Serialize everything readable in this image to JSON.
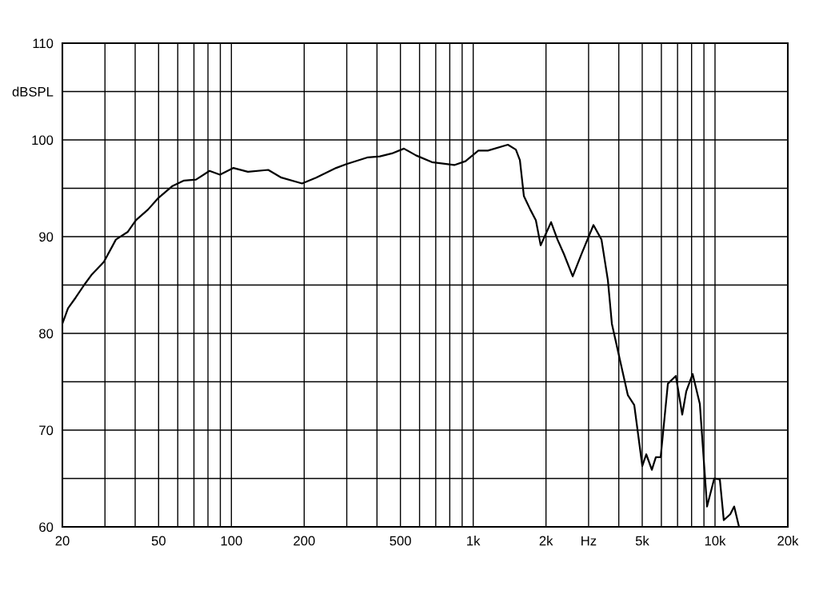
{
  "chart_data": {
    "type": "line",
    "log": "x",
    "grid": true,
    "marker": "none",
    "line_style": "solid",
    "xlim": [
      20,
      20000
    ],
    "ylim": [
      60,
      110
    ],
    "xticks": [
      20,
      {
        "value": 30,
        "label": null
      },
      {
        "value": 40,
        "label": null
      },
      50,
      {
        "value": 60,
        "label": null
      },
      {
        "value": 70,
        "label": null
      },
      {
        "value": 80,
        "label": null
      },
      {
        "value": 90,
        "label": null
      },
      100,
      200,
      {
        "value": 300,
        "label": null
      },
      {
        "value": 400,
        "label": null
      },
      500,
      {
        "value": 600,
        "label": null
      },
      {
        "value": 700,
        "label": null
      },
      {
        "value": 800,
        "label": null
      },
      {
        "value": 900,
        "label": null
      },
      {
        "value": 1000,
        "label": "1k"
      },
      {
        "value": 2000,
        "label": "2k"
      },
      {
        "value": 3000,
        "label": "Hz"
      },
      {
        "value": 4000,
        "label": null
      },
      {
        "value": 5000,
        "label": "5k"
      },
      {
        "value": 6000,
        "label": null
      },
      {
        "value": 7000,
        "label": null
      },
      {
        "value": 8000,
        "label": null
      },
      {
        "value": 9000,
        "label": null
      },
      {
        "value": 10000,
        "label": "10k"
      },
      {
        "value": 20000,
        "label": "20k"
      }
    ],
    "yticks": [
      60,
      {
        "value": 65,
        "label": null
      },
      70,
      {
        "value": 75,
        "label": null
      },
      80,
      {
        "value": 85,
        "label": null
      },
      90,
      {
        "value": 95,
        "label": null
      },
      100,
      {
        "value": 105,
        "label": "dBSPL"
      },
      110
    ],
    "series": [
      {
        "color": "#000000",
        "x": [
          20,
          21.1,
          22.7,
          24.6,
          26.5,
          29.7,
          33.3,
          37.3,
          40.3,
          45.2,
          49.9,
          56.8,
          63.7,
          71.4,
          81.2,
          89.7,
          102,
          117,
          142,
          161,
          196,
          224,
          271,
          299,
          367,
          411,
          461,
          517,
          580,
          675,
          835,
          929,
          1050,
          1150,
          1391,
          1501,
          1560,
          1620,
          1722,
          1816,
          1901,
          1990,
          2099,
          2231,
          2372,
          2579,
          2825,
          3143,
          3392,
          3605,
          3745,
          4041,
          4362,
          4634,
          5003,
          5196,
          5480,
          5693,
          5959,
          6384,
          6888,
          7319,
          7603,
          8080,
          8655,
          9270,
          9928,
          10470,
          10870,
          11560,
          12000,
          12570
        ],
        "values": [
          81.0,
          82.6,
          83.7,
          85.0,
          86.1,
          87.4,
          89.7,
          90.5,
          91.7,
          92.8,
          94.0,
          95.2,
          95.8,
          95.9,
          96.8,
          96.4,
          97.1,
          96.7,
          96.9,
          96.1,
          95.5,
          96.1,
          97.1,
          97.5,
          98.2,
          98.3,
          98.6,
          99.1,
          98.4,
          97.7,
          97.4,
          97.8,
          98.9,
          98.9,
          99.5,
          99.0,
          97.9,
          94.2,
          92.8,
          91.7,
          89.1,
          90.2,
          91.5,
          89.7,
          88.2,
          85.9,
          88.4,
          91.2,
          89.7,
          85.5,
          81.0,
          77.3,
          73.6,
          72.6,
          66.3,
          67.5,
          65.9,
          67.2,
          67.2,
          74.8,
          75.6,
          71.6,
          74.0,
          75.8,
          72.7,
          62.1,
          65.0,
          64.9,
          60.7,
          61.3,
          62.1,
          60.0
        ]
      }
    ]
  }
}
